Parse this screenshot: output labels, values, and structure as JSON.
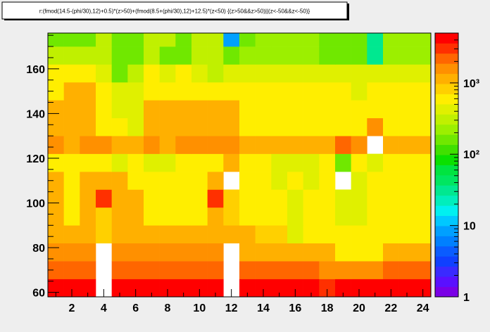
{
  "chart_data": {
    "type": "heatmap",
    "title": "r:(fmod(14.5-(phi/30),12)+0.5)*(z>50)+(fmod(8.5+(phi/30),12)+12.5)*(z<50) {(z>50&&z>50)||(z<-50&&z<-50)}",
    "xlabel": "",
    "ylabel": "",
    "xlim": [
      0.5,
      24.5
    ],
    "ylim": [
      58,
      176
    ],
    "x_ticks": [
      2,
      4,
      6,
      8,
      10,
      12,
      14,
      16,
      18,
      20,
      22,
      24
    ],
    "y_ticks": [
      60,
      80,
      100,
      120,
      140,
      160
    ],
    "y_edges": [
      58,
      66,
      74,
      82,
      90,
      98,
      106,
      114,
      122,
      130,
      138,
      146,
      154,
      162,
      170,
      176
    ],
    "z_scale": "log",
    "z_range": [
      1,
      5000
    ],
    "z_ticks": [
      {
        "value": 1,
        "label": "1"
      },
      {
        "value": 10,
        "label": "10"
      },
      {
        "value": 100,
        "label": "10²"
      },
      {
        "value": 1000,
        "label": "10³"
      }
    ],
    "grid": false,
    "x_bins": 24,
    "rows": [
      [
        4000,
        4000,
        4000,
        0,
        4000,
        4000,
        4000,
        4000,
        4000,
        4000,
        4000,
        0,
        4000,
        4000,
        4000,
        4000,
        4000,
        3500,
        4000,
        4000,
        4000,
        4000,
        4000,
        4000
      ],
      [
        2000,
        2000,
        2400,
        0,
        2400,
        2000,
        2000,
        2000,
        2000,
        2000,
        2400,
        0,
        2000,
        2000,
        2000,
        2000,
        2000,
        1400,
        1400,
        1400,
        1400,
        2000,
        2000,
        2000
      ],
      [
        1400,
        1400,
        1800,
        0,
        1800,
        1400,
        1400,
        1400,
        1400,
        1400,
        1800,
        0,
        1000,
        1000,
        1000,
        1000,
        1000,
        1000,
        700,
        700,
        700,
        1000,
        1000,
        1000
      ],
      [
        1000,
        1000,
        1000,
        800,
        1000,
        1000,
        1000,
        1000,
        1000,
        1000,
        1000,
        1000,
        1000,
        800,
        800,
        400,
        700,
        700,
        700,
        700,
        700,
        700,
        700,
        700
      ],
      [
        1000,
        700,
        1000,
        800,
        1000,
        1000,
        700,
        700,
        700,
        700,
        1000,
        800,
        700,
        700,
        700,
        400,
        700,
        700,
        400,
        400,
        700,
        700,
        700,
        700
      ],
      [
        1000,
        700,
        1000,
        3500,
        1000,
        1000,
        700,
        700,
        700,
        700,
        3500,
        800,
        700,
        700,
        700,
        400,
        700,
        700,
        400,
        400,
        700,
        700,
        700,
        700
      ],
      [
        1000,
        700,
        1000,
        1000,
        1000,
        700,
        700,
        700,
        700,
        700,
        1000,
        0,
        700,
        700,
        400,
        700,
        400,
        700,
        0,
        400,
        700,
        700,
        700,
        700
      ],
      [
        700,
        700,
        700,
        700,
        400,
        700,
        400,
        400,
        700,
        700,
        700,
        1000,
        700,
        700,
        400,
        400,
        400,
        700,
        170,
        700,
        400,
        700,
        700,
        700
      ],
      [
        1800,
        1000,
        1800,
        1800,
        1000,
        1000,
        1800,
        1000,
        1800,
        1800,
        1800,
        1800,
        1000,
        1000,
        1000,
        1000,
        1000,
        1000,
        2200,
        1800,
        0,
        1000,
        1000,
        1000
      ],
      [
        1000,
        1000,
        1000,
        700,
        700,
        400,
        1000,
        1000,
        1000,
        1000,
        1000,
        1000,
        700,
        700,
        700,
        700,
        700,
        700,
        700,
        700,
        1800,
        700,
        700,
        700
      ],
      [
        1000,
        1000,
        1000,
        700,
        400,
        400,
        1000,
        1000,
        1000,
        1000,
        1000,
        1000,
        700,
        700,
        700,
        700,
        700,
        700,
        700,
        700,
        700,
        700,
        700,
        700
      ],
      [
        700,
        1000,
        1000,
        700,
        400,
        400,
        700,
        700,
        700,
        700,
        700,
        700,
        700,
        700,
        700,
        700,
        700,
        700,
        700,
        400,
        700,
        700,
        700,
        700
      ],
      [
        700,
        700,
        700,
        400,
        140,
        270,
        700,
        400,
        700,
        400,
        270,
        400,
        400,
        400,
        400,
        400,
        400,
        400,
        400,
        400,
        400,
        400,
        400,
        400
      ],
      [
        270,
        270,
        270,
        270,
        140,
        140,
        270,
        140,
        140,
        270,
        270,
        140,
        200,
        200,
        200,
        200,
        200,
        140,
        140,
        140,
        35,
        200,
        200,
        200
      ],
      [
        140,
        140,
        140,
        270,
        140,
        140,
        270,
        270,
        140,
        270,
        270,
        8,
        140,
        200,
        200,
        200,
        200,
        140,
        140,
        140,
        35,
        200,
        200,
        200
      ]
    ],
    "palette": [
      "#7a00e6",
      "#5a10ff",
      "#3a2aff",
      "#1040ff",
      "#0a5cff",
      "#0080ff",
      "#00a0ff",
      "#00c8ff",
      "#00f0f0",
      "#00eebc",
      "#00e890",
      "#00e660",
      "#00e440",
      "#0ae000",
      "#40e000",
      "#70e800",
      "#9cef00",
      "#c0f000",
      "#e0f000",
      "#ffee00",
      "#ffd000",
      "#ffb000",
      "#ff9000",
      "#ff6600",
      "#ff3000",
      "#ff0000"
    ]
  }
}
